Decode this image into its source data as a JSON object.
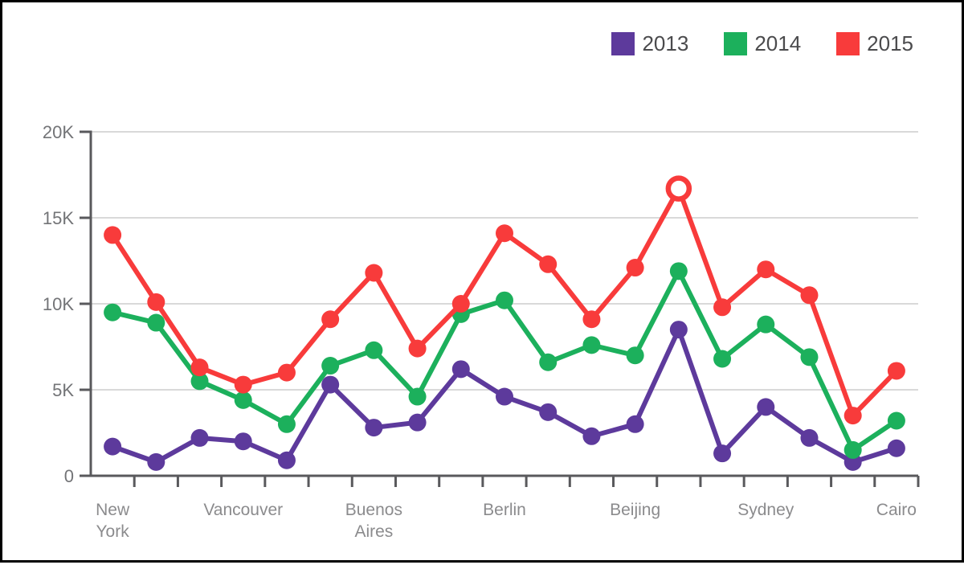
{
  "colors": {
    "background": "#ffffff",
    "frame_border": "#000000",
    "axis_line": "#59595c",
    "gridline": "#d9d9d9",
    "y_tick_label": "#737477",
    "x_tick_label": "#8b8b8d",
    "legend_text": "#4b4b4d",
    "series_2013": "#5d3a9c",
    "series_2014": "#1cb05c",
    "series_2015": "#f83b3b"
  },
  "legend": {
    "position": "top-right",
    "items": [
      {
        "label": "2013",
        "color": "#5d3a9c"
      },
      {
        "label": "2014",
        "color": "#1cb05c"
      },
      {
        "label": "2015",
        "color": "#f83b3b"
      }
    ]
  },
  "chart_data": {
    "type": "line",
    "title": "",
    "xlabel": "",
    "ylabel": "",
    "grid": "horizontal",
    "legend_position": "top-right",
    "categories": [
      "New York",
      "",
      "",
      "Vancouver",
      "",
      "",
      "Buenos Aires",
      "",
      "",
      "Berlin",
      "",
      "",
      "Beijing",
      "",
      "",
      "Sydney",
      "",
      "",
      "Cairo"
    ],
    "x_axis_labels": [
      {
        "index": 0,
        "lines": [
          "New",
          "York"
        ]
      },
      {
        "index": 3,
        "lines": [
          "Vancouver"
        ]
      },
      {
        "index": 6,
        "lines": [
          "Buenos",
          "Aires"
        ]
      },
      {
        "index": 9,
        "lines": [
          "Berlin"
        ]
      },
      {
        "index": 12,
        "lines": [
          "Beijing"
        ]
      },
      {
        "index": 15,
        "lines": [
          "Sydney"
        ]
      },
      {
        "index": 18,
        "lines": [
          "Cairo"
        ]
      }
    ],
    "y_axis": {
      "min": 0,
      "max": 20000,
      "ticks": [
        {
          "value": 0,
          "label": "0"
        },
        {
          "value": 5000,
          "label": "5K"
        },
        {
          "value": 10000,
          "label": "10K"
        },
        {
          "value": 15000,
          "label": "15K"
        },
        {
          "value": 20000,
          "label": "20K"
        }
      ]
    },
    "series": [
      {
        "name": "2013",
        "color": "#5d3a9c",
        "values": [
          1700,
          800,
          2200,
          2000,
          900,
          5300,
          2800,
          3100,
          6200,
          4600,
          3700,
          2300,
          3000,
          8500,
          1300,
          4000,
          2200,
          800,
          1600
        ]
      },
      {
        "name": "2014",
        "color": "#1cb05c",
        "values": [
          9500,
          8900,
          5500,
          4400,
          3000,
          6400,
          7300,
          4600,
          9400,
          10200,
          6600,
          7600,
          7000,
          11900,
          6800,
          8800,
          6900,
          1500,
          3200
        ]
      },
      {
        "name": "2015",
        "color": "#f83b3b",
        "values": [
          14000,
          10100,
          6300,
          5300,
          6000,
          9100,
          11800,
          7400,
          10000,
          14100,
          12300,
          9100,
          12100,
          16700,
          9800,
          12000,
          10500,
          3500,
          6100
        ],
        "highlight": {
          "index": 13,
          "style": "open-circle",
          "fill": "#ffffff"
        }
      }
    ]
  }
}
